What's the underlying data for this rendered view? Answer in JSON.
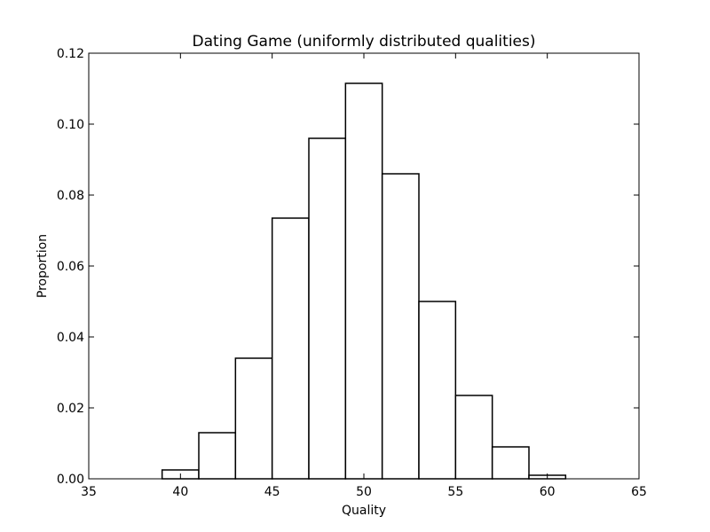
{
  "chart_data": {
    "type": "bar",
    "subtype": "histogram",
    "title": "Dating Game (uniformly distributed qualities)",
    "xlabel": "Quality",
    "ylabel": "Proportion",
    "xlim": [
      35,
      65
    ],
    "ylim": [
      0,
      0.12
    ],
    "xticks": [
      "35",
      "40",
      "45",
      "50",
      "55",
      "60",
      "65"
    ],
    "yticks": [
      "0.00",
      "0.02",
      "0.04",
      "0.06",
      "0.08",
      "0.10",
      "0.12"
    ],
    "grid": false,
    "legend": "none",
    "bin_edges": [
      39,
      41,
      43,
      45,
      47,
      49,
      51,
      53,
      55,
      57,
      59,
      61
    ],
    "values": [
      0.0025,
      0.013,
      0.034,
      0.0735,
      0.096,
      0.1115,
      0.086,
      0.05,
      0.0235,
      0.009,
      0.001
    ],
    "bar_fill": "#ffffff",
    "bar_edge": "#000000"
  }
}
